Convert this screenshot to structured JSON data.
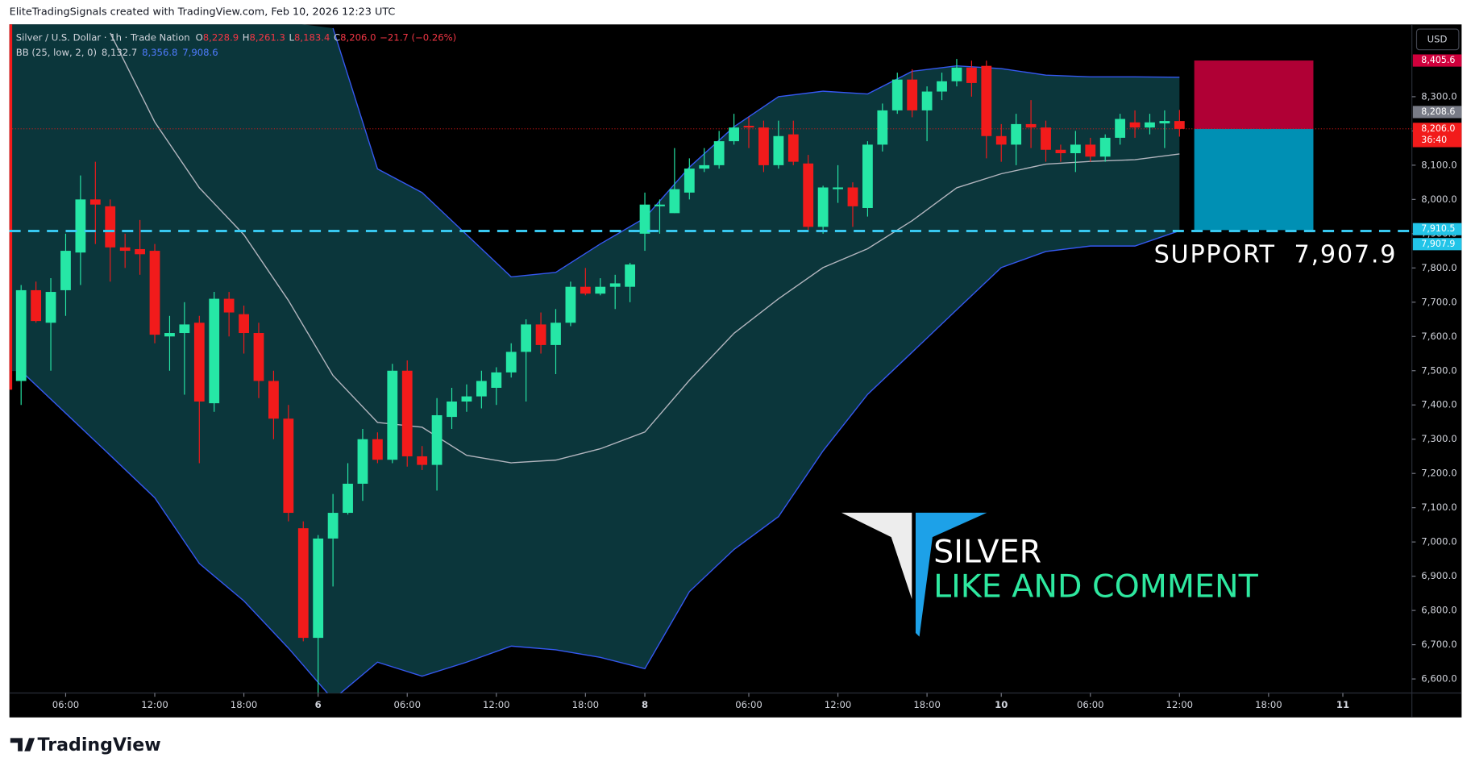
{
  "header": "EliteTradingSignals created with TradingView.com, Feb 10, 2026 12:23 UTC",
  "chart_data": {
    "type": "candlestick",
    "symbol": "Silver / U.S. Dollar · 1h · Trade Nation",
    "legend": [
      {
        "key": "O",
        "text": "8,228.9"
      },
      {
        "key": "H",
        "text": "8,261.3"
      },
      {
        "key": "L",
        "text": "8,183.4"
      },
      {
        "key": "C",
        "text": "8,206.0"
      }
    ],
    "change": "−21.7 (−0.26%)",
    "up_color": "#26e7a6",
    "down_color": "#f21b1b",
    "ohlc": [
      [
        7470,
        7750,
        7400,
        7735
      ],
      [
        7735,
        7760,
        7640,
        7645
      ],
      [
        7640,
        7770,
        7500,
        7730
      ],
      [
        7735,
        7900,
        7660,
        7850
      ],
      [
        7845,
        8070,
        7750,
        8000
      ],
      [
        8000,
        8110,
        7870,
        7985
      ],
      [
        7980,
        8000,
        7760,
        7860
      ],
      [
        7860,
        7900,
        7800,
        7850
      ],
      [
        7855,
        7940,
        7780,
        7840
      ],
      [
        7850,
        7870,
        7580,
        7605
      ],
      [
        7600,
        7660,
        7500,
        7610
      ],
      [
        7610,
        7700,
        7430,
        7635
      ],
      [
        7640,
        7660,
        7230,
        7410
      ],
      [
        7405,
        7730,
        7380,
        7710
      ],
      [
        7710,
        7730,
        7600,
        7670
      ],
      [
        7665,
        7690,
        7550,
        7610
      ],
      [
        7610,
        7640,
        7420,
        7470
      ],
      [
        7470,
        7500,
        7300,
        7360
      ],
      [
        7360,
        7400,
        7060,
        7085
      ],
      [
        7040,
        7060,
        6710,
        6720
      ],
      [
        6720,
        7020,
        6560,
        7010
      ],
      [
        7010,
        7140,
        6870,
        7085
      ],
      [
        7085,
        7230,
        7080,
        7170
      ],
      [
        7170,
        7330,
        7120,
        7300
      ],
      [
        7300,
        7320,
        7230,
        7240
      ],
      [
        7240,
        7520,
        7230,
        7500
      ],
      [
        7500,
        7530,
        7220,
        7250
      ],
      [
        7250,
        7280,
        7210,
        7225
      ],
      [
        7225,
        7420,
        7150,
        7370
      ],
      [
        7365,
        7450,
        7330,
        7410
      ],
      [
        7410,
        7460,
        7380,
        7425
      ],
      [
        7425,
        7500,
        7390,
        7470
      ],
      [
        7450,
        7510,
        7400,
        7495
      ],
      [
        7495,
        7580,
        7480,
        7555
      ],
      [
        7555,
        7650,
        7410,
        7635
      ],
      [
        7635,
        7670,
        7550,
        7575
      ],
      [
        7575,
        7680,
        7490,
        7640
      ],
      [
        7640,
        7760,
        7630,
        7745
      ],
      [
        7745,
        7800,
        7720,
        7725
      ],
      [
        7725,
        7770,
        7720,
        7745
      ],
      [
        7745,
        7780,
        7680,
        7755
      ],
      [
        7745,
        7815,
        7700,
        7810
      ],
      [
        7900,
        8020,
        7850,
        7985
      ],
      [
        7980,
        8000,
        7900,
        7985
      ],
      [
        7960,
        8150,
        7960,
        8030
      ],
      [
        8020,
        8120,
        8000,
        8090
      ],
      [
        8090,
        8150,
        8080,
        8100
      ],
      [
        8100,
        8200,
        8090,
        8170
      ],
      [
        8170,
        8250,
        8160,
        8210
      ],
      [
        8215,
        8240,
        8150,
        8210
      ],
      [
        8210,
        8230,
        8080,
        8100
      ],
      [
        8100,
        8230,
        8090,
        8185
      ],
      [
        8190,
        8230,
        8100,
        8110
      ],
      [
        8105,
        8130,
        7910,
        7920
      ],
      [
        7920,
        8040,
        7900,
        8035
      ],
      [
        8030,
        8100,
        7990,
        8035
      ],
      [
        8035,
        8050,
        7920,
        7980
      ],
      [
        7975,
        8170,
        7950,
        8160
      ],
      [
        8160,
        8280,
        8140,
        8260
      ],
      [
        8260,
        8370,
        8250,
        8350
      ],
      [
        8350,
        8380,
        8240,
        8260
      ],
      [
        8260,
        8330,
        8170,
        8315
      ],
      [
        8315,
        8370,
        8290,
        8345
      ],
      [
        8345,
        8410,
        8330,
        8385
      ],
      [
        8385,
        8405,
        8300,
        8340
      ],
      [
        8390,
        8405,
        8120,
        8185
      ],
      [
        8185,
        8220,
        8110,
        8160
      ],
      [
        8160,
        8250,
        8100,
        8220
      ],
      [
        8220,
        8290,
        8150,
        8210
      ],
      [
        8210,
        8230,
        8110,
        8145
      ],
      [
        8145,
        8160,
        8110,
        8135
      ],
      [
        8135,
        8200,
        8080,
        8160
      ],
      [
        8160,
        8180,
        8110,
        8125
      ],
      [
        8125,
        8190,
        8110,
        8180
      ],
      [
        8180,
        8250,
        8160,
        8235
      ],
      [
        8225,
        8260,
        8180,
        8210
      ],
      [
        8210,
        8250,
        8190,
        8225
      ],
      [
        8222,
        8260,
        8150,
        8229
      ],
      [
        8228.9,
        8261.3,
        8183.4,
        8206.0
      ]
    ],
    "indicator": {
      "name": "BB (25, low, 2, 0)",
      "values": [
        "8,132.7",
        "8,356.8",
        "7,908.6"
      ],
      "fill": "#0b363b",
      "x": [
        0,
        3,
        6,
        9,
        12,
        15,
        18,
        21,
        24,
        27,
        30,
        33,
        36,
        39,
        42,
        45,
        48,
        51,
        54,
        57,
        60,
        63,
        66,
        69,
        72,
        75,
        78
      ],
      "series": [
        {
          "color": "#b2b5be",
          "values": [
            null,
            null,
            8486,
            8226,
            8034,
            7897,
            7705,
            7486,
            7349,
            7335,
            7253,
            7231,
            7239,
            7272,
            7321,
            7472,
            7609,
            7710,
            7801,
            7856,
            7938,
            8034,
            8075,
            8103,
            8111,
            8116,
            8132.7
          ]
        },
        {
          "color": "#3558f0",
          "values": [
            null,
            null,
            null,
            null,
            null,
            null,
            null,
            8500,
            8089,
            8020,
            7897,
            7774,
            7787,
            7870,
            7946,
            8094,
            8212,
            8300,
            8316,
            8308,
            8374,
            8390,
            8382,
            8363,
            8358,
            8358,
            8356.8
          ]
        },
        {
          "color": "#3558f0",
          "values": [
            7499,
            7376,
            7253,
            7129,
            6937,
            6828,
            6690,
            6540,
            6649,
            6608,
            6649,
            6696,
            6685,
            6663,
            6630,
            6855,
            6978,
            7074,
            7266,
            7431,
            7554,
            7678,
            7801,
            7848,
            7864,
            7864,
            7908.6
          ]
        }
      ]
    },
    "xlim": [
      -0.79,
      93.65
    ],
    "xticks": [
      {
        "value": 3,
        "label": "06:00"
      },
      {
        "value": 9,
        "label": "12:00"
      },
      {
        "value": 15,
        "label": "18:00"
      },
      {
        "value": 20,
        "label": "6"
      },
      {
        "value": 26,
        "label": "06:00"
      },
      {
        "value": 32,
        "label": "12:00"
      },
      {
        "value": 38,
        "label": "18:00"
      },
      {
        "value": 42,
        "label": "8"
      },
      {
        "value": 49,
        "label": "06:00"
      },
      {
        "value": 55,
        "label": "12:00"
      },
      {
        "value": 61,
        "label": "18:00"
      },
      {
        "value": 66,
        "label": "10"
      },
      {
        "value": 72,
        "label": "06:00"
      },
      {
        "value": 78,
        "label": "12:00"
      },
      {
        "value": 84,
        "label": "18:00"
      },
      {
        "value": 89,
        "label": "11"
      }
    ],
    "ylim": [
      6559,
      8511
    ],
    "yticks": [
      {
        "value": 6600,
        "label": "6,600.0"
      },
      {
        "value": 6700,
        "label": "6,700.0"
      },
      {
        "value": 6800,
        "label": "6,800.0"
      },
      {
        "value": 6900,
        "label": "6,900.0"
      },
      {
        "value": 7000,
        "label": "7,000.0"
      },
      {
        "value": 7100,
        "label": "7,100.0"
      },
      {
        "value": 7200,
        "label": "7,200.0"
      },
      {
        "value": 7300,
        "label": "7,300.0"
      },
      {
        "value": 7400,
        "label": "7,400.0"
      },
      {
        "value": 7500,
        "label": "7,500.0"
      },
      {
        "value": 7600,
        "label": "7,600.0"
      },
      {
        "value": 7700,
        "label": "7,700.0"
      },
      {
        "value": 7800,
        "label": "7,800.0"
      },
      {
        "value": 7900,
        "label": "7,900.0"
      },
      {
        "value": 8000,
        "label": "8,000.0"
      },
      {
        "value": 8100,
        "label": "8,100.0"
      },
      {
        "value": 8200,
        "label": "8,200.0"
      },
      {
        "value": 8300,
        "label": "8,300.0"
      }
    ],
    "currency": "USD",
    "price_tags": [
      {
        "value": 8405.6,
        "label": "8,405.6",
        "color": "#d0003c"
      },
      {
        "value": 8208.6,
        "label": "8,208.6",
        "color": "#787b86"
      },
      {
        "value": 8206.0,
        "label": "8,206.0",
        "color": "#f21b1b"
      },
      {
        "value": 7910.5,
        "label": "7,910.5",
        "color": "#22c4e8"
      },
      {
        "value": 7907.9,
        "label": "7,907.9",
        "color": "#22c4e8"
      }
    ],
    "countdown": "36:40",
    "target_color": "#b00035",
    "stop_color": "#0090b4",
    "support_color": "#38c8f0",
    "support_label": "SUPPORT  7,907.9"
  },
  "overlay": {
    "title": "SILVER",
    "subtitle": "LIKE AND COMMENT"
  },
  "footer": "TradingView"
}
